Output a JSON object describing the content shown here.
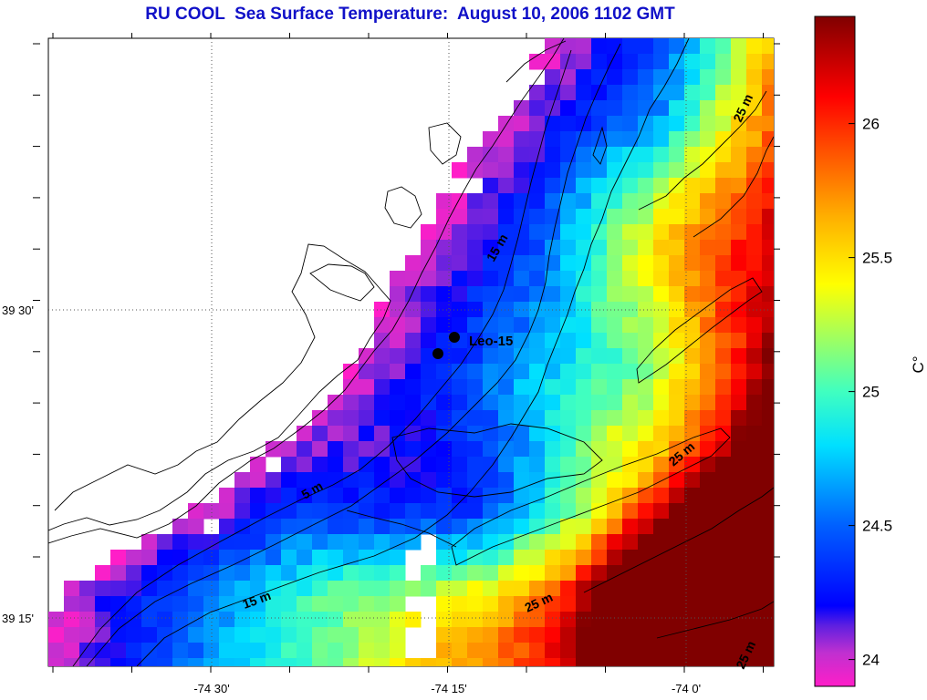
{
  "title": "RU COOL  Sea Surface Temperature:  August 10, 2006 1102 GMT",
  "x_ticks": [
    "-74 30'",
    "-74 15'",
    "-74 0'"
  ],
  "y_ticks": [
    "39 30'",
    "39 15'"
  ],
  "station": {
    "name": "Leo-15"
  },
  "contour_labels": [
    "5 m",
    "15 m",
    "15 m",
    "25 m",
    "25 m",
    "25 m",
    "25 m"
  ],
  "colorbar": {
    "unit": "C°",
    "ticks": [
      "24",
      "24.5",
      "25",
      "25.5",
      "26"
    ],
    "range": [
      23.9,
      26.4
    ],
    "colors": {
      "min": "#ff20c0",
      "low": "#1010ff",
      "mid": "#00ffff",
      "high": "#ffff00",
      "max": "#800000"
    }
  }
}
